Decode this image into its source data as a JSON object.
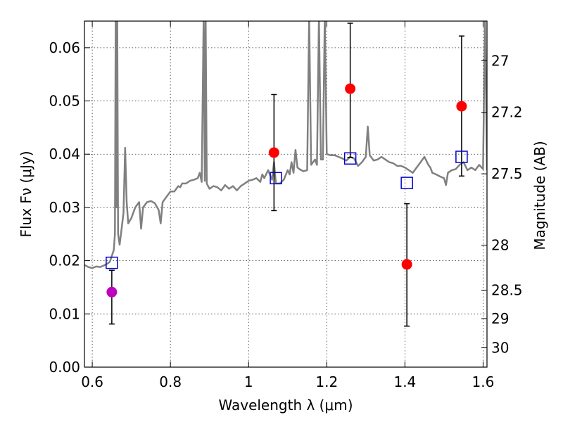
{
  "chart_data": {
    "type": "scatter",
    "title": "",
    "xlabel": "Wavelength  λ (μm)",
    "ylabel": "Flux  Fν (μJy)",
    "y2label": "Magnitude (AB)",
    "xlim": [
      0.58,
      1.61
    ],
    "ylim": [
      0.0,
      0.065
    ],
    "x_ticks": [
      0.6,
      0.8,
      1.0,
      1.2,
      1.4,
      1.6
    ],
    "x_tick_labels": [
      "0.6",
      "0.8",
      "1",
      "1.2",
      "1.4",
      "1.6"
    ],
    "y_ticks": [
      0.0,
      0.01,
      0.02,
      0.03,
      0.04,
      0.05,
      0.06
    ],
    "y_tick_labels": [
      "0.00",
      "0.01",
      "0.02",
      "0.03",
      "0.04",
      "0.05",
      "0.06"
    ],
    "y2_ticks": [
      {
        "label": "27",
        "mag": 27.0
      },
      {
        "label": "27.2",
        "mag": 27.2
      },
      {
        "label": "27.5",
        "mag": 27.5
      },
      {
        "label": "28",
        "mag": 28.0
      },
      {
        "label": "28.5",
        "mag": 28.5
      },
      {
        "label": "29",
        "mag": 29.0
      },
      {
        "label": "30",
        "mag": 30.0
      }
    ],
    "grid": true,
    "colors": {
      "template": "#808080",
      "observed": "#ff0000",
      "observed_first": "#bf00bf",
      "model": "#0000cc",
      "errorbar": "#000000"
    },
    "series": [
      {
        "kind": "line",
        "points": [
          [
            0.58,
            0.0192
          ],
          [
            0.59,
            0.0188
          ],
          [
            0.6,
            0.0186
          ],
          [
            0.61,
            0.0189
          ],
          [
            0.62,
            0.0188
          ],
          [
            0.63,
            0.0191
          ],
          [
            0.64,
            0.0195
          ],
          [
            0.645,
            0.0198
          ],
          [
            0.655,
            0.022
          ],
          [
            0.658,
            0.025
          ],
          [
            0.66,
            0.066
          ],
          [
            0.662,
            0.03
          ],
          [
            0.664,
            0.066
          ],
          [
            0.666,
            0.025
          ],
          [
            0.67,
            0.023
          ],
          [
            0.675,
            0.026
          ],
          [
            0.68,
            0.029
          ],
          [
            0.684,
            0.0412
          ],
          [
            0.688,
            0.031
          ],
          [
            0.692,
            0.027
          ],
          [
            0.7,
            0.028
          ],
          [
            0.71,
            0.03
          ],
          [
            0.72,
            0.031
          ],
          [
            0.725,
            0.026
          ],
          [
            0.73,
            0.03
          ],
          [
            0.74,
            0.031
          ],
          [
            0.75,
            0.0312
          ],
          [
            0.76,
            0.0308
          ],
          [
            0.77,
            0.0295
          ],
          [
            0.775,
            0.027
          ],
          [
            0.78,
            0.031
          ],
          [
            0.79,
            0.032
          ],
          [
            0.8,
            0.033
          ],
          [
            0.81,
            0.033
          ],
          [
            0.82,
            0.034
          ],
          [
            0.825,
            0.0338
          ],
          [
            0.83,
            0.0345
          ],
          [
            0.84,
            0.0345
          ],
          [
            0.85,
            0.035
          ],
          [
            0.86,
            0.0352
          ],
          [
            0.87,
            0.0355
          ],
          [
            0.875,
            0.0365
          ],
          [
            0.88,
            0.0348
          ],
          [
            0.885,
            0.066
          ],
          [
            0.888,
            0.035
          ],
          [
            0.89,
            0.066
          ],
          [
            0.893,
            0.0345
          ],
          [
            0.9,
            0.0335
          ],
          [
            0.91,
            0.034
          ],
          [
            0.92,
            0.0338
          ],
          [
            0.93,
            0.0332
          ],
          [
            0.94,
            0.0342
          ],
          [
            0.95,
            0.0335
          ],
          [
            0.96,
            0.034
          ],
          [
            0.97,
            0.0332
          ],
          [
            0.98,
            0.034
          ],
          [
            0.99,
            0.0345
          ],
          [
            1.0,
            0.035
          ],
          [
            1.01,
            0.0352
          ],
          [
            1.02,
            0.0355
          ],
          [
            1.03,
            0.0348
          ],
          [
            1.035,
            0.0362
          ],
          [
            1.04,
            0.0355
          ],
          [
            1.05,
            0.037
          ],
          [
            1.06,
            0.0352
          ],
          [
            1.065,
            0.0385
          ],
          [
            1.07,
            0.0345
          ],
          [
            1.08,
            0.0345
          ],
          [
            1.09,
            0.0352
          ],
          [
            1.1,
            0.037
          ],
          [
            1.105,
            0.0362
          ],
          [
            1.11,
            0.0385
          ],
          [
            1.115,
            0.0365
          ],
          [
            1.12,
            0.0408
          ],
          [
            1.125,
            0.0375
          ],
          [
            1.13,
            0.0372
          ],
          [
            1.14,
            0.0368
          ],
          [
            1.15,
            0.037
          ],
          [
            1.155,
            0.066
          ],
          [
            1.16,
            0.038
          ],
          [
            1.17,
            0.039
          ],
          [
            1.175,
            0.038
          ],
          [
            1.18,
            0.066
          ],
          [
            1.185,
            0.039
          ],
          [
            1.19,
            0.039
          ],
          [
            1.195,
            0.066
          ],
          [
            1.2,
            0.04
          ],
          [
            1.21,
            0.0398
          ],
          [
            1.22,
            0.0398
          ],
          [
            1.23,
            0.0395
          ],
          [
            1.24,
            0.0392
          ],
          [
            1.25,
            0.0388
          ],
          [
            1.26,
            0.0395
          ],
          [
            1.27,
            0.0392
          ],
          [
            1.28,
            0.0378
          ],
          [
            1.29,
            0.0385
          ],
          [
            1.3,
            0.0395
          ],
          [
            1.305,
            0.0452
          ],
          [
            1.31,
            0.0398
          ],
          [
            1.32,
            0.0388
          ],
          [
            1.33,
            0.039
          ],
          [
            1.34,
            0.0395
          ],
          [
            1.35,
            0.039
          ],
          [
            1.36,
            0.0385
          ],
          [
            1.37,
            0.0383
          ],
          [
            1.38,
            0.0378
          ],
          [
            1.39,
            0.0378
          ],
          [
            1.4,
            0.0375
          ],
          [
            1.41,
            0.037
          ],
          [
            1.42,
            0.0365
          ],
          [
            1.43,
            0.0375
          ],
          [
            1.44,
            0.0385
          ],
          [
            1.45,
            0.0395
          ],
          [
            1.46,
            0.038
          ],
          [
            1.465,
            0.0375
          ],
          [
            1.47,
            0.0365
          ],
          [
            1.48,
            0.0362
          ],
          [
            1.49,
            0.0358
          ],
          [
            1.5,
            0.0355
          ],
          [
            1.505,
            0.0342
          ],
          [
            1.51,
            0.0365
          ],
          [
            1.52,
            0.037
          ],
          [
            1.53,
            0.0372
          ],
          [
            1.54,
            0.038
          ],
          [
            1.55,
            0.0385
          ],
          [
            1.56,
            0.037
          ],
          [
            1.57,
            0.0375
          ],
          [
            1.58,
            0.037
          ],
          [
            1.59,
            0.038
          ],
          [
            1.6,
            0.0372
          ],
          [
            1.605,
            0.066
          ],
          [
            1.61,
            0.037
          ]
        ]
      },
      {
        "kind": "observed",
        "points": [
          {
            "x": 0.65,
            "y": 0.0141,
            "yerr_low": 0.0081,
            "yerr_high": 0.0182,
            "color": "#bf00bf"
          },
          {
            "x": 1.065,
            "y": 0.0403,
            "yerr_low": 0.0294,
            "yerr_high": 0.0512,
            "color": "#ff0000"
          },
          {
            "x": 1.26,
            "y": 0.0523,
            "yerr_low": 0.0394,
            "yerr_high": 0.0646,
            "color": "#ff0000"
          },
          {
            "x": 1.405,
            "y": 0.0193,
            "yerr_low": 0.0077,
            "yerr_high": 0.0307,
            "color": "#ff0000"
          },
          {
            "x": 1.545,
            "y": 0.049,
            "yerr_low": 0.0359,
            "yerr_high": 0.0622,
            "color": "#ff0000"
          }
        ]
      },
      {
        "kind": "model",
        "points": [
          {
            "x": 0.65,
            "y": 0.0196
          },
          {
            "x": 1.07,
            "y": 0.0355
          },
          {
            "x": 1.26,
            "y": 0.0392
          },
          {
            "x": 1.405,
            "y": 0.0346
          },
          {
            "x": 1.545,
            "y": 0.0395
          }
        ]
      }
    ]
  }
}
